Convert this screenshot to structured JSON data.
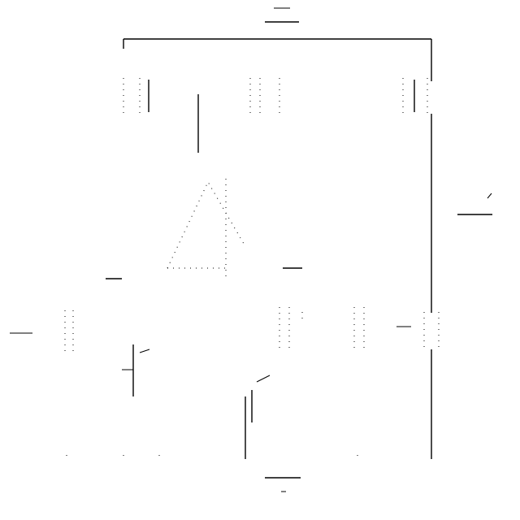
{
  "colors": {
    "background": "#ffffff",
    "line": "#000000"
  },
  "icons": [
    "power-rail-icon",
    "ground-icon",
    "transistor-icon",
    "op-amp-icon",
    "resistor-icon"
  ]
}
